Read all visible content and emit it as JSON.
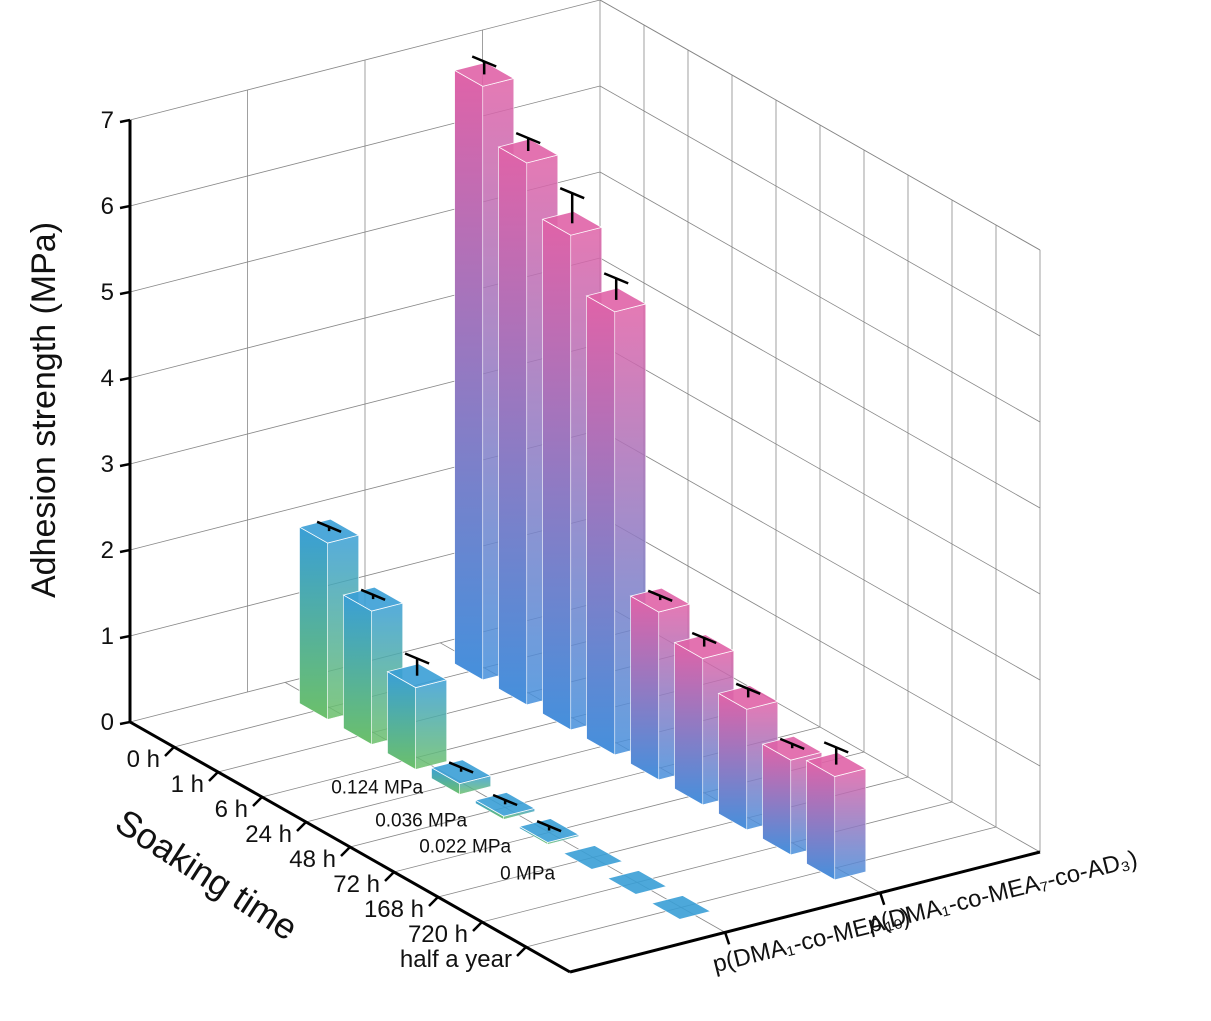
{
  "chart_data": {
    "type": "bar3d",
    "y_label": "Adhesion strength (MPa)",
    "x_label": "Soaking time",
    "categories": [
      "0 h",
      "1 h",
      "6 h",
      "24 h",
      "48 h",
      "72 h",
      "168 h",
      "720 h",
      "half a year"
    ],
    "series": [
      {
        "name": "p(DMA₁-co-MEA₁₀)",
        "color": "#3a9fd6",
        "color_bottom": "#6cc06a",
        "values": [
          2.05,
          1.55,
          0.95,
          0.124,
          0.036,
          0.022,
          0,
          0,
          0
        ],
        "errors": [
          0.05,
          0.05,
          0.2,
          0.05,
          0.05,
          0.05,
          null,
          null,
          null
        ],
        "value_labels": [
          null,
          null,
          null,
          "0.124 MPa",
          "0.036 MPa",
          "0.022 MPa",
          "0 MPa",
          null,
          null
        ]
      },
      {
        "name": "p(DMA₁-co-MEA₇-co-AD₃)",
        "color": "#e063a8",
        "color_bottom": "#4590dc",
        "values": [
          6.9,
          6.3,
          5.75,
          5.15,
          1.95,
          1.7,
          1.4,
          1.1,
          1.2
        ],
        "errors": [
          0.15,
          0.15,
          0.35,
          0.25,
          0.05,
          0.1,
          0.1,
          0.05,
          0.2
        ]
      }
    ],
    "ylim": [
      0,
      7
    ],
    "yticks": [
      0,
      1,
      2,
      3,
      4,
      5,
      6,
      7
    ],
    "grid": true
  }
}
